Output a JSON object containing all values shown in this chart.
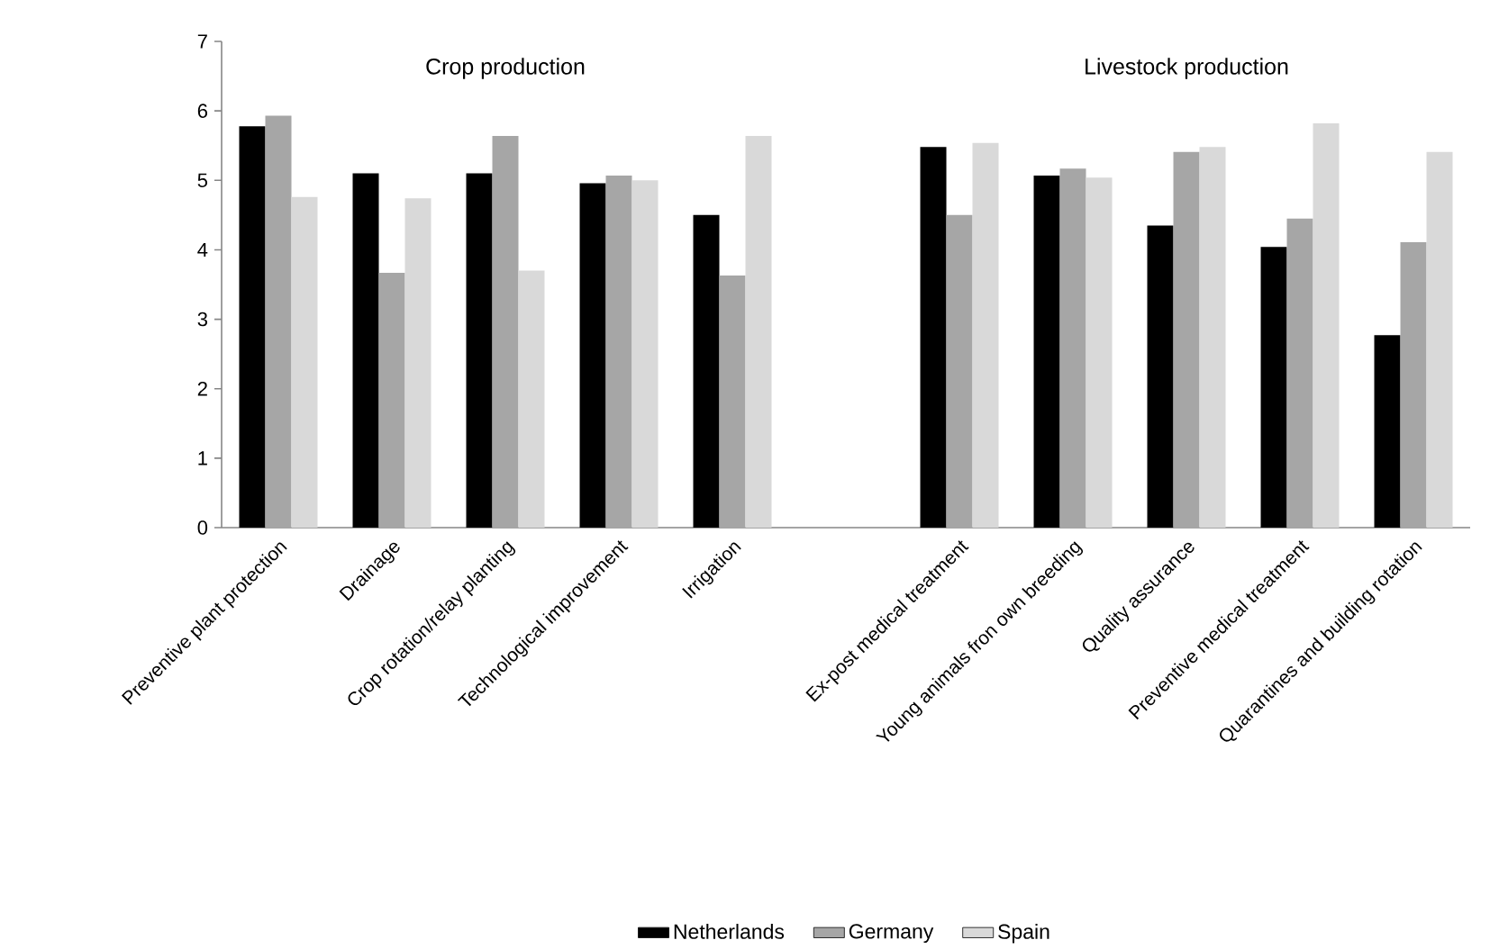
{
  "chart_data": {
    "type": "bar",
    "categories": [
      "Preventive plant protection",
      "Drainage",
      "Crop rotation/relay planting",
      "Technological improvement",
      "Irrigation",
      null,
      "Ex-post medical treatment",
      "Young animals fron own breeding",
      "Quality assurance",
      "Preventive medical treatment",
      "Quarantines and building rotation"
    ],
    "series": [
      {
        "name": "Netherlands",
        "color": "#000000",
        "values": [
          5.78,
          5.1,
          5.1,
          4.96,
          4.5,
          null,
          5.48,
          5.07,
          4.35,
          4.04,
          2.77
        ]
      },
      {
        "name": "Germany",
        "color": "#a6a6a6",
        "values": [
          5.93,
          3.67,
          5.64,
          5.07,
          3.63,
          null,
          4.5,
          5.17,
          5.41,
          4.45,
          4.11
        ]
      },
      {
        "name": "Spain",
        "color": "#d9d9d9",
        "values": [
          4.76,
          4.74,
          3.7,
          5.0,
          5.64,
          null,
          5.54,
          5.04,
          5.48,
          5.82,
          5.41
        ]
      }
    ],
    "ylim": [
      0,
      7
    ],
    "yticks": [
      0,
      1,
      2,
      3,
      4,
      5,
      6,
      7
    ],
    "legend": "bottom",
    "annotations": [
      "Crop production",
      "Livestock production"
    ]
  }
}
